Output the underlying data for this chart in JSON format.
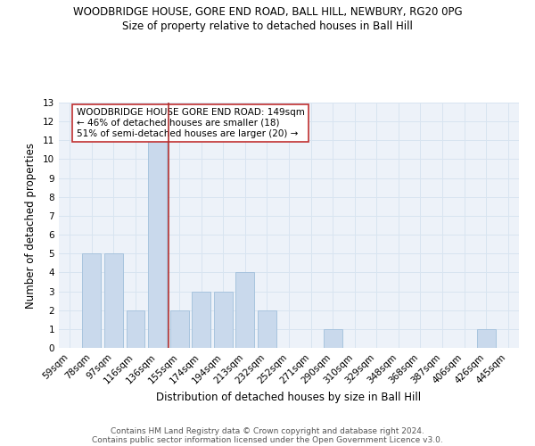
{
  "title1": "WOODBRIDGE HOUSE, GORE END ROAD, BALL HILL, NEWBURY, RG20 0PG",
  "title2": "Size of property relative to detached houses in Ball Hill",
  "xlabel": "Distribution of detached houses by size in Ball Hill",
  "ylabel": "Number of detached properties",
  "categories": [
    "59sqm",
    "78sqm",
    "97sqm",
    "116sqm",
    "136sqm",
    "155sqm",
    "174sqm",
    "194sqm",
    "213sqm",
    "232sqm",
    "252sqm",
    "271sqm",
    "290sqm",
    "310sqm",
    "329sqm",
    "348sqm",
    "368sqm",
    "387sqm",
    "406sqm",
    "426sqm",
    "445sqm"
  ],
  "values": [
    0,
    5,
    5,
    2,
    11,
    2,
    3,
    3,
    4,
    2,
    0,
    0,
    1,
    0,
    0,
    0,
    0,
    0,
    0,
    1,
    0
  ],
  "bar_color": "#c9d9ec",
  "bar_edge_color": "#a8c4de",
  "vline_x_idx": 4.5,
  "vline_color": "#b03030",
  "annotation_text": "WOODBRIDGE HOUSE GORE END ROAD: 149sqm\n← 46% of detached houses are smaller (18)\n51% of semi-detached houses are larger (20) →",
  "ylim": [
    0,
    13
  ],
  "yticks": [
    0,
    1,
    2,
    3,
    4,
    5,
    6,
    7,
    8,
    9,
    10,
    11,
    12,
    13
  ],
  "grid_color": "#d8e4f0",
  "bg_color": "#edf2f9",
  "footer1": "Contains HM Land Registry data © Crown copyright and database right 2024.",
  "footer2": "Contains public sector information licensed under the Open Government Licence v3.0."
}
